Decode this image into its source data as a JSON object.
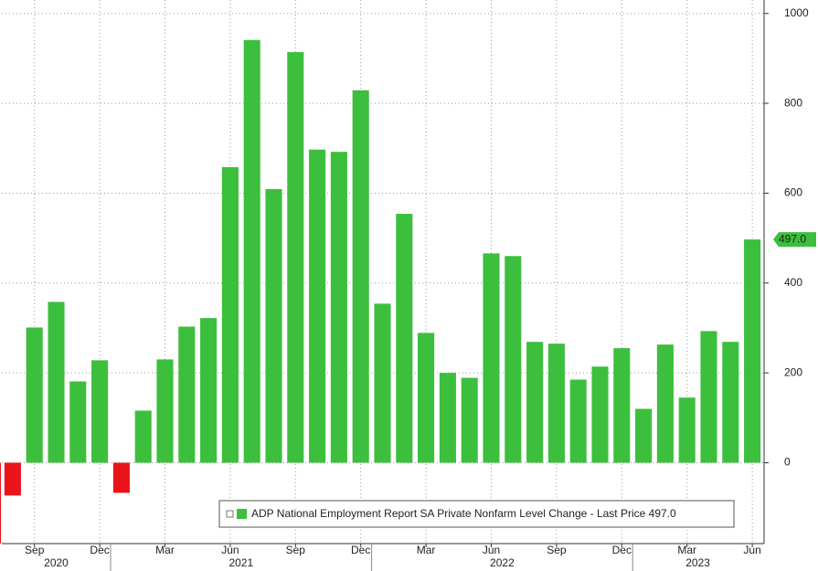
{
  "chart_data": {
    "type": "bar",
    "legend": "ADP National Employment Report SA Private Nonfarm Level Change - Last Price 497.0",
    "categories": [
      null,
      "Sep",
      null,
      null,
      "Dec",
      null,
      null,
      "Mar",
      null,
      null,
      "Jun",
      null,
      null,
      "Sep",
      null,
      null,
      "Dec",
      null,
      null,
      "Mar",
      null,
      null,
      "Jun",
      null,
      null,
      "Sep",
      null,
      null,
      "Dec",
      null,
      null,
      "Mar",
      null,
      null,
      "Jun"
    ],
    "years": [
      "2020",
      "2021",
      "2022",
      "2023"
    ],
    "values": [
      -73,
      301,
      358,
      181,
      228,
      -67,
      116,
      230,
      303,
      322,
      658,
      941,
      609,
      914,
      697,
      692,
      829,
      354,
      554,
      289,
      200,
      189,
      466,
      460,
      269,
      265,
      185,
      214,
      255,
      120,
      263,
      145,
      293,
      269,
      497
    ],
    "last_value_label": "497.0",
    "color": "#3cbf3c",
    "negative_color": "#e8141a",
    "ylim": [
      -180,
      1030
    ],
    "yticks": [
      0,
      200,
      400,
      600,
      800,
      1000
    ],
    "grid": true
  }
}
